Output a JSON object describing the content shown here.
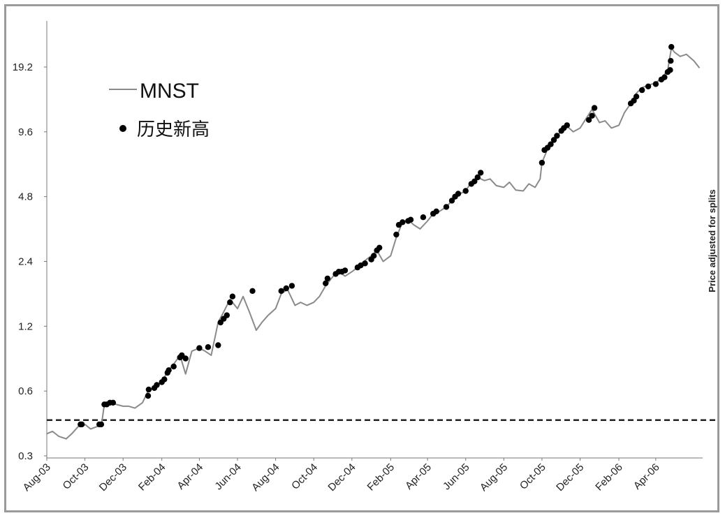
{
  "chart_data": {
    "type": "line",
    "y_scale": "log2",
    "y_ticks": [
      "0.3",
      "0.6",
      "1.2",
      "2.4",
      "4.8",
      "9.6",
      "19.2"
    ],
    "x_ticks": [
      "Aug-03",
      "Oct-03",
      "Dec-03",
      "Feb-04",
      "Apr-04",
      "Jun-04",
      "Aug-04",
      "Oct-04",
      "Dec-04",
      "Feb-05",
      "Apr-05",
      "Jun-05",
      "Aug-05",
      "Oct-05",
      "Dec-05",
      "Feb-06",
      "Apr-06"
    ],
    "ylim": [
      0.3,
      26
    ],
    "xlim": [
      "2003-08-01",
      "2006-06-15"
    ],
    "side_note": "Price adjusted for splits",
    "reference_line": {
      "y": 0.44,
      "style": "dashed"
    },
    "legend": {
      "line_label": "MNST",
      "marker_label": "历史新高",
      "placement": "top-left"
    },
    "colors": {
      "line": "#8a8a8a",
      "marker": "#000000",
      "reference": "#222222",
      "frame": "#9a9a9a"
    },
    "series": [
      {
        "name": "MNST",
        "points": [
          [
            "2003-08-01",
            0.38
          ],
          [
            "2003-08-10",
            0.39
          ],
          [
            "2003-08-20",
            0.37
          ],
          [
            "2003-09-01",
            0.36
          ],
          [
            "2003-09-10",
            0.38
          ],
          [
            "2003-09-20",
            0.41
          ],
          [
            "2003-10-01",
            0.42
          ],
          [
            "2003-10-10",
            0.4
          ],
          [
            "2003-10-20",
            0.41
          ],
          [
            "2003-10-28",
            0.43
          ],
          [
            "2003-11-01",
            0.52
          ],
          [
            "2003-11-10",
            0.53
          ],
          [
            "2003-11-20",
            0.52
          ],
          [
            "2003-12-01",
            0.51
          ],
          [
            "2003-12-10",
            0.51
          ],
          [
            "2003-12-20",
            0.5
          ],
          [
            "2004-01-01",
            0.53
          ],
          [
            "2004-01-10",
            0.6
          ],
          [
            "2004-01-20",
            0.62
          ],
          [
            "2004-02-01",
            0.66
          ],
          [
            "2004-02-10",
            0.74
          ],
          [
            "2004-02-20",
            0.8
          ],
          [
            "2004-03-01",
            0.88
          ],
          [
            "2004-03-10",
            0.72
          ],
          [
            "2004-03-20",
            0.92
          ],
          [
            "2004-04-01",
            0.95
          ],
          [
            "2004-04-10",
            0.92
          ],
          [
            "2004-04-20",
            0.88
          ],
          [
            "2004-05-01",
            1.25
          ],
          [
            "2004-05-10",
            1.4
          ],
          [
            "2004-05-20",
            1.6
          ],
          [
            "2004-06-01",
            1.45
          ],
          [
            "2004-06-10",
            1.65
          ],
          [
            "2004-06-20",
            1.4
          ],
          [
            "2004-07-01",
            1.15
          ],
          [
            "2004-07-10",
            1.25
          ],
          [
            "2004-07-20",
            1.35
          ],
          [
            "2004-08-01",
            1.45
          ],
          [
            "2004-08-10",
            1.7
          ],
          [
            "2004-08-20",
            1.78
          ],
          [
            "2004-09-01",
            1.5
          ],
          [
            "2004-09-10",
            1.55
          ],
          [
            "2004-09-20",
            1.5
          ],
          [
            "2004-10-01",
            1.55
          ],
          [
            "2004-10-10",
            1.65
          ],
          [
            "2004-10-20",
            1.85
          ],
          [
            "2004-11-01",
            2.05
          ],
          [
            "2004-11-10",
            2.15
          ],
          [
            "2004-11-20",
            2.05
          ],
          [
            "2004-12-01",
            2.15
          ],
          [
            "2004-12-10",
            2.25
          ],
          [
            "2004-12-20",
            2.4
          ],
          [
            "2005-01-01",
            2.55
          ],
          [
            "2005-01-10",
            2.7
          ],
          [
            "2005-01-20",
            2.4
          ],
          [
            "2005-02-01",
            2.55
          ],
          [
            "2005-02-10",
            3.1
          ],
          [
            "2005-02-20",
            3.65
          ],
          [
            "2005-03-01",
            3.75
          ],
          [
            "2005-03-10",
            3.55
          ],
          [
            "2005-03-20",
            3.4
          ],
          [
            "2005-04-01",
            3.7
          ],
          [
            "2005-04-10",
            4.0
          ],
          [
            "2005-04-20",
            4.1
          ],
          [
            "2005-05-01",
            4.3
          ],
          [
            "2005-05-10",
            4.6
          ],
          [
            "2005-05-20",
            4.9
          ],
          [
            "2005-06-01",
            5.1
          ],
          [
            "2005-06-10",
            5.6
          ],
          [
            "2005-06-20",
            5.9
          ],
          [
            "2005-07-01",
            5.7
          ],
          [
            "2005-07-10",
            5.8
          ],
          [
            "2005-07-20",
            5.4
          ],
          [
            "2005-08-01",
            5.3
          ],
          [
            "2005-08-10",
            5.6
          ],
          [
            "2005-08-20",
            5.15
          ],
          [
            "2005-09-01",
            5.1
          ],
          [
            "2005-09-10",
            5.5
          ],
          [
            "2005-09-20",
            5.3
          ],
          [
            "2005-09-28",
            5.8
          ],
          [
            "2005-10-01",
            6.9
          ],
          [
            "2005-10-10",
            8.0
          ],
          [
            "2005-10-20",
            8.8
          ],
          [
            "2005-11-01",
            9.7
          ],
          [
            "2005-11-10",
            10.2
          ],
          [
            "2005-11-20",
            9.6
          ],
          [
            "2005-12-01",
            10.0
          ],
          [
            "2005-12-10",
            11.0
          ],
          [
            "2005-12-20",
            12.2
          ],
          [
            "2006-01-01",
            10.6
          ],
          [
            "2006-01-10",
            10.8
          ],
          [
            "2006-01-20",
            10.0
          ],
          [
            "2006-02-01",
            10.3
          ],
          [
            "2006-02-10",
            11.8
          ],
          [
            "2006-02-20",
            13.0
          ],
          [
            "2006-03-01",
            14.5
          ],
          [
            "2006-03-10",
            15.4
          ],
          [
            "2006-03-20",
            15.8
          ],
          [
            "2006-04-01",
            16.2
          ],
          [
            "2006-04-10",
            17.0
          ],
          [
            "2006-04-20",
            18.5
          ],
          [
            "2006-04-26",
            23.5
          ],
          [
            "2006-05-01",
            22.5
          ],
          [
            "2006-05-10",
            21.5
          ],
          [
            "2006-05-20",
            22.0
          ],
          [
            "2006-06-01",
            20.5
          ],
          [
            "2006-06-10",
            19.0
          ]
        ]
      },
      {
        "name": "历史新高",
        "points": [
          [
            "2003-09-24",
            0.42
          ],
          [
            "2003-09-26",
            0.42
          ],
          [
            "2003-10-24",
            0.42
          ],
          [
            "2003-10-27",
            0.42
          ],
          [
            "2003-11-01",
            0.52
          ],
          [
            "2003-11-05",
            0.52
          ],
          [
            "2003-11-10",
            0.53
          ],
          [
            "2003-11-15",
            0.53
          ],
          [
            "2004-01-10",
            0.57
          ],
          [
            "2004-01-11",
            0.61
          ],
          [
            "2004-01-20",
            0.62
          ],
          [
            "2004-01-24",
            0.64
          ],
          [
            "2004-02-01",
            0.66
          ],
          [
            "2004-02-05",
            0.68
          ],
          [
            "2004-02-10",
            0.73
          ],
          [
            "2004-02-12",
            0.75
          ],
          [
            "2004-02-20",
            0.78
          ],
          [
            "2004-03-01",
            0.86
          ],
          [
            "2004-03-04",
            0.88
          ],
          [
            "2004-03-10",
            0.85
          ],
          [
            "2004-04-01",
            0.95
          ],
          [
            "2004-04-15",
            0.96
          ],
          [
            "2004-05-01",
            0.98
          ],
          [
            "2004-05-05",
            1.25
          ],
          [
            "2004-05-10",
            1.3
          ],
          [
            "2004-05-15",
            1.35
          ],
          [
            "2004-05-20",
            1.55
          ],
          [
            "2004-05-24",
            1.65
          ],
          [
            "2004-06-25",
            1.75
          ],
          [
            "2004-08-10",
            1.75
          ],
          [
            "2004-08-18",
            1.8
          ],
          [
            "2004-08-27",
            1.85
          ],
          [
            "2004-10-20",
            1.9
          ],
          [
            "2004-10-23",
            2.0
          ],
          [
            "2004-11-05",
            2.1
          ],
          [
            "2004-11-10",
            2.15
          ],
          [
            "2004-11-15",
            2.15
          ],
          [
            "2004-11-20",
            2.18
          ],
          [
            "2004-12-10",
            2.25
          ],
          [
            "2004-12-15",
            2.3
          ],
          [
            "2004-12-22",
            2.35
          ],
          [
            "2005-01-01",
            2.45
          ],
          [
            "2005-01-05",
            2.55
          ],
          [
            "2005-01-10",
            2.7
          ],
          [
            "2005-01-14",
            2.78
          ],
          [
            "2005-02-10",
            3.2
          ],
          [
            "2005-02-14",
            3.55
          ],
          [
            "2005-02-20",
            3.65
          ],
          [
            "2005-03-01",
            3.7
          ],
          [
            "2005-03-05",
            3.75
          ],
          [
            "2005-03-25",
            3.85
          ],
          [
            "2005-04-10",
            4.0
          ],
          [
            "2005-04-15",
            4.1
          ],
          [
            "2005-05-01",
            4.3
          ],
          [
            "2005-05-10",
            4.6
          ],
          [
            "2005-05-15",
            4.8
          ],
          [
            "2005-05-20",
            4.95
          ],
          [
            "2005-06-01",
            5.1
          ],
          [
            "2005-06-10",
            5.5
          ],
          [
            "2005-06-15",
            5.65
          ],
          [
            "2005-06-20",
            5.9
          ],
          [
            "2005-06-25",
            6.2
          ],
          [
            "2005-10-01",
            6.9
          ],
          [
            "2005-10-05",
            7.9
          ],
          [
            "2005-10-10",
            8.1
          ],
          [
            "2005-10-15",
            8.4
          ],
          [
            "2005-10-20",
            8.8
          ],
          [
            "2005-10-25",
            9.2
          ],
          [
            "2005-11-01",
            9.7
          ],
          [
            "2005-11-05",
            10.0
          ],
          [
            "2005-11-10",
            10.3
          ],
          [
            "2005-12-15",
            10.9
          ],
          [
            "2005-12-20",
            11.4
          ],
          [
            "2005-12-24",
            12.4
          ],
          [
            "2006-02-20",
            13.0
          ],
          [
            "2006-02-25",
            13.4
          ],
          [
            "2006-03-01",
            14.0
          ],
          [
            "2006-03-10",
            15.0
          ],
          [
            "2006-03-20",
            15.6
          ],
          [
            "2006-04-01",
            16.0
          ],
          [
            "2006-04-10",
            16.8
          ],
          [
            "2006-04-15",
            17.2
          ],
          [
            "2006-04-20",
            18.2
          ],
          [
            "2006-04-24",
            18.6
          ],
          [
            "2006-04-25",
            20.5
          ],
          [
            "2006-04-26",
            23.8
          ]
        ]
      }
    ]
  }
}
